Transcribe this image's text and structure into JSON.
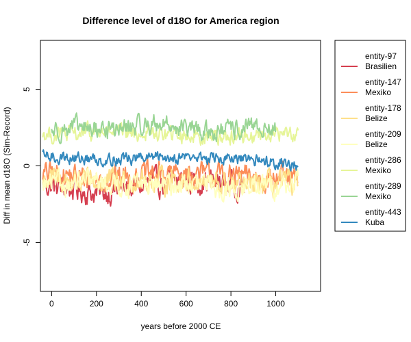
{
  "chart_data": {
    "type": "line",
    "title": "Difference level of d18O for America region",
    "xlabel": "years before 2000 CE",
    "ylabel": "Diff in mean d18O (Sim-Record)",
    "xlim": [
      -50,
      1200
    ],
    "ylim": [
      -8.2,
      8.2
    ],
    "xticks": [
      0,
      200,
      400,
      600,
      800,
      1000
    ],
    "yticks": [
      -5,
      0,
      5
    ],
    "grid": false,
    "legend_position": "right",
    "series": [
      {
        "name": "entity-97",
        "region": "Brasilien",
        "color": "#D53E4F",
        "x_range": [
          -40,
          860
        ],
        "mean": -1.3,
        "amp": 0.9,
        "x": [
          -40,
          0,
          100,
          200,
          300,
          400,
          500,
          600,
          700,
          800,
          860
        ],
        "y": [
          -1.2,
          -1.3,
          -1.5,
          -1.8,
          -1.6,
          -1.3,
          -1.1,
          -1.0,
          -1.0,
          -1.2,
          -1.3
        ]
      },
      {
        "name": "entity-147",
        "region": "Mexiko",
        "color": "#FC8D59",
        "x_range": [
          -40,
          1100
        ],
        "mean": -0.6,
        "amp": 0.9,
        "x": [
          -40,
          0,
          200,
          400,
          600,
          800,
          1000,
          1100
        ],
        "y": [
          -0.6,
          -0.5,
          -0.9,
          -0.6,
          -0.5,
          -0.7,
          -0.8,
          -1.0
        ]
      },
      {
        "name": "entity-178",
        "region": "Belize",
        "color": "#FEE08B",
        "x_range": [
          -40,
          1100
        ],
        "mean": -1.0,
        "amp": 0.9,
        "x": [
          -40,
          0,
          200,
          400,
          600,
          800,
          1000,
          1100
        ],
        "y": [
          -1.0,
          -0.9,
          -1.1,
          -1.0,
          -0.9,
          -1.4,
          -1.2,
          -1.1
        ]
      },
      {
        "name": "entity-209",
        "region": "Belize",
        "color": "#FFFFBF",
        "x_range": [
          -40,
          1100
        ],
        "mean": -1.2,
        "amp": 0.8,
        "x": [
          -40,
          0,
          200,
          400,
          600,
          800,
          1000,
          1100
        ],
        "y": [
          -1.3,
          -1.2,
          -1.1,
          -1.3,
          -1.2,
          -1.5,
          -1.3,
          -1.1
        ]
      },
      {
        "name": "entity-286",
        "region": "Mexiko",
        "color": "#E6F598",
        "x_range": [
          -40,
          1100
        ],
        "mean": 2.0,
        "amp": 0.6,
        "x": [
          -40,
          0,
          200,
          400,
          600,
          800,
          1000,
          1100
        ],
        "y": [
          2.1,
          2.0,
          2.2,
          2.1,
          2.0,
          1.9,
          2.1,
          2.2
        ]
      },
      {
        "name": "entity-289",
        "region": "Mexiko",
        "color": "#99D594",
        "x_range": [
          0,
          1000
        ],
        "mean": 2.4,
        "amp": 0.7,
        "x": [
          0,
          100,
          200,
          300,
          400,
          500,
          600,
          700,
          800,
          900,
          1000
        ],
        "y": [
          2.3,
          2.5,
          2.4,
          2.4,
          2.6,
          2.8,
          2.4,
          2.2,
          2.3,
          2.5,
          2.4
        ]
      },
      {
        "name": "entity-443",
        "region": "Kuba",
        "color": "#3288BD",
        "x_range": [
          -40,
          1100
        ],
        "mean": 0.5,
        "amp": 0.45,
        "x": [
          -40,
          0,
          200,
          400,
          600,
          800,
          1000,
          1100
        ],
        "y": [
          0.6,
          0.6,
          0.4,
          0.5,
          0.6,
          0.4,
          0.3,
          0.0
        ]
      }
    ]
  }
}
